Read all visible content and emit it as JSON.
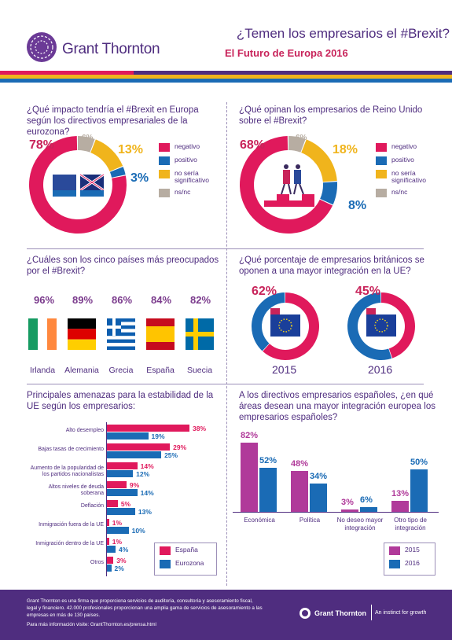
{
  "header": {
    "logo_text": "Grant Thornton",
    "title": "¿Temen los empresarios el #Brexit?",
    "subtitle": "El Futuro de Europa 2016"
  },
  "colors": {
    "magenta": "#e0195c",
    "blue": "#1a6bb5",
    "yellow": "#f0b41c",
    "grey": "#b7ada2",
    "purple": "#4f2d7f",
    "pink_bar": "#b03a9a"
  },
  "section1": {
    "question": "¿Qué impacto tendría el #Brexit en Europa según los directivos empresariales de la eurozona?",
    "values": {
      "negativo": "78%",
      "positivo": "3%",
      "no_significativo": "13%",
      "nsnc": "6%"
    }
  },
  "section2": {
    "question": "¿Qué opinan los empresarios de Reino Unido sobre el #Brexit?",
    "values": {
      "negativo": "68%",
      "positivo": "8%",
      "no_significativo": "18%",
      "nsnc": "6%"
    }
  },
  "legend": {
    "negativo": "negativo",
    "positivo": "positivo",
    "no_significativo": "no sería significativo",
    "nsnc": "ns/nc"
  },
  "section3": {
    "question": "¿Cuáles son los cinco países más preocupados por el #Brexit?",
    "countries": [
      {
        "name": "Irlanda",
        "pct": "96%"
      },
      {
        "name": "Alemania",
        "pct": "89%"
      },
      {
        "name": "Grecia",
        "pct": "86%"
      },
      {
        "name": "España",
        "pct": "84%"
      },
      {
        "name": "Suecia",
        "pct": "82%"
      }
    ]
  },
  "section4": {
    "question": "¿Qué  porcentaje de empresarios británicos se oponen a una mayor integración en la UE?",
    "years": [
      {
        "year": "2015",
        "pct": "62%"
      },
      {
        "year": "2016",
        "pct": "45%"
      }
    ]
  },
  "section5": {
    "title": "Principales amenazas para la estabilidad de la UE según los empresarios:",
    "legend": {
      "espana": "España",
      "eurozona": "Eurozona"
    },
    "rows": [
      {
        "label": "Alto desempleo",
        "espana": "38%",
        "eurozona": "19%"
      },
      {
        "label": "Bajas tasas de crecimiento",
        "espana": "29%",
        "eurozona": "25%"
      },
      {
        "label": "Aumento de la popularidad de los partidos nacionalistas",
        "espana": "14%",
        "eurozona": "12%"
      },
      {
        "label": "Altos niveles de deuda soberana",
        "espana": "9%",
        "eurozona": "14%"
      },
      {
        "label": "Deflación",
        "espana": "5%",
        "eurozona": "13%"
      },
      {
        "label": "Inmigración fuera de la UE",
        "espana": "1%",
        "eurozona": "10%"
      },
      {
        "label": "Inmigración dentro de la UE",
        "espana": "1%",
        "eurozona": "4%"
      },
      {
        "label": "Otros",
        "espana": "3%",
        "eurozona": "2%"
      }
    ]
  },
  "section6": {
    "title": "A los directivos empresarios españoles, ¿en qué áreas desean una mayor integración europea los empresarios españoles?",
    "legend": {
      "y2015": "2015",
      "y2016": "2016"
    },
    "groups": [
      {
        "label": "Económica",
        "v2015": "82%",
        "v2016": "52%"
      },
      {
        "label": "Política",
        "v2015": "48%",
        "v2016": "34%"
      },
      {
        "label": "No deseo mayor integración",
        "v2015": "3%",
        "v2016": "6%"
      },
      {
        "label": "Otro tipo de integración",
        "v2015": "13%",
        "v2016": "50%"
      }
    ]
  },
  "footer": {
    "text": "Grant Thornton es una firma que proporciona servicios de auditoría, consultoría y asesoramiento fiscal, legal y financiero. 42.000 profesionales proporcionan una amplia gama de servicios de asesoramiento a las empresas en más de 130 países.",
    "more_info": "Para más información visite: GrantThornton.es/prensa.html",
    "logo_text": "Grant Thornton",
    "tagline": "An instinct for growth"
  }
}
